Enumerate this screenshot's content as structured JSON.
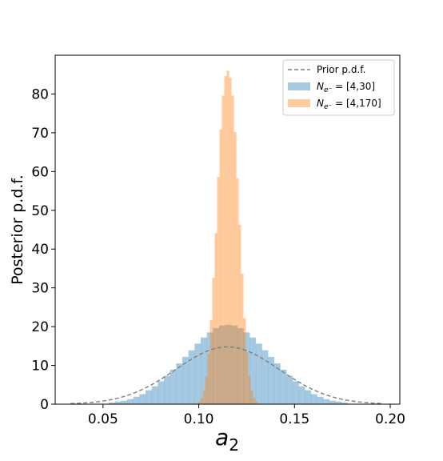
{
  "chart_data": {
    "type": "histogram",
    "title": "",
    "xlabel": "a",
    "xlabel_subscript": "2",
    "ylabel": "Posterior p.d.f.",
    "xlim": [
      0.025,
      0.205
    ],
    "ylim": [
      0,
      90
    ],
    "x_ticks": [
      0.05,
      0.1,
      0.15,
      0.2
    ],
    "x_tick_labels": [
      "0.05",
      "0.10",
      "0.15",
      "0.20"
    ],
    "y_ticks": [
      0,
      10,
      20,
      30,
      40,
      50,
      60,
      70,
      80
    ],
    "y_tick_labels": [
      "0",
      "10",
      "20",
      "30",
      "40",
      "50",
      "60",
      "70",
      "80"
    ],
    "grid": false,
    "legend_position": "top-right",
    "series": [
      {
        "name_parts": [
          "N",
          "e⁻",
          " = [4,30]"
        ],
        "kind": "histogram",
        "color": "#1f77b4",
        "alpha": 0.4,
        "bin_width": 0.0032,
        "bin_starts": [
          0.053,
          0.0562,
          0.0594,
          0.0626,
          0.0658,
          0.069,
          0.0722,
          0.0754,
          0.0786,
          0.0818,
          0.085,
          0.0882,
          0.0914,
          0.0946,
          0.0978,
          0.101,
          0.1042,
          0.1074,
          0.1106,
          0.1138,
          0.117,
          0.1202,
          0.1234,
          0.1266,
          0.1298,
          0.133,
          0.1362,
          0.1394,
          0.1426,
          0.1458,
          0.149,
          0.1522,
          0.1554,
          0.1586,
          0.1618,
          0.165,
          0.1682,
          0.1714,
          0.1746
        ],
        "values": [
          0.4,
          0.7,
          0.9,
          1.3,
          1.9,
          2.6,
          3.6,
          4.6,
          5.9,
          7.3,
          8.9,
          10.5,
          12.2,
          13.9,
          15.6,
          17.2,
          18.5,
          19.6,
          20.3,
          20.5,
          20.3,
          19.6,
          18.5,
          17.2,
          15.6,
          13.9,
          12.2,
          10.5,
          8.9,
          7.3,
          5.9,
          4.6,
          3.6,
          2.6,
          1.9,
          1.3,
          0.9,
          0.7,
          0.4
        ]
      },
      {
        "name_parts": [
          "N",
          "e⁻",
          " = [4,170]"
        ],
        "kind": "histogram",
        "color": "#ff7f0e",
        "alpha": 0.4,
        "bin_width": 0.00125,
        "bin_starts": [
          0.0983,
          0.09955,
          0.1008,
          0.10205,
          0.1033,
          0.10455,
          0.1058,
          0.10705,
          0.1083,
          0.10955,
          0.1108,
          0.11205,
          0.1133,
          0.11455,
          0.1158,
          0.11705,
          0.1183,
          0.11955,
          0.1208,
          0.12205,
          0.1233,
          0.12455,
          0.1258,
          0.12705,
          0.1283,
          0.12955,
          0.1308,
          0.13205
        ],
        "values": [
          0.2,
          0.6,
          1.5,
          3.4,
          7.0,
          13.0,
          21.7,
          32.6,
          44.1,
          58.6,
          70.8,
          79.6,
          84.6,
          86.0,
          84.2,
          79.6,
          70.2,
          58.3,
          46.3,
          33.6,
          22.2,
          13.3,
          7.3,
          3.5,
          1.6,
          0.6,
          0.2,
          0.05
        ]
      }
    ],
    "prior": {
      "name": "Prior p.d.f.",
      "kind": "line",
      "style": "dashed",
      "color": "#7f7f7f",
      "mean": 0.115,
      "std": 0.027,
      "x_range": [
        0.033,
        0.196
      ]
    }
  }
}
